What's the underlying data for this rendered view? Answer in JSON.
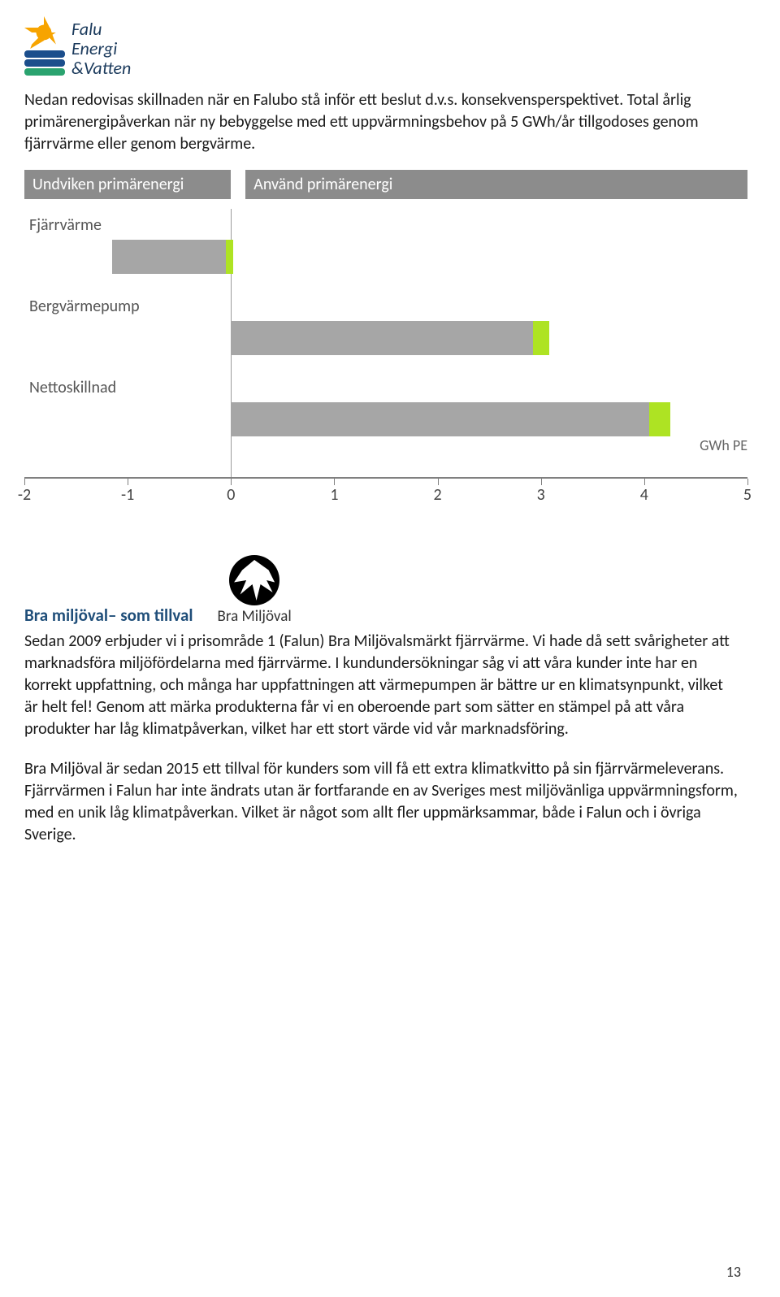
{
  "logo": {
    "line1": "Falu",
    "line2": "Energi",
    "line3": "&Vatten",
    "wave_colors": [
      "#1b4e8c",
      "#1b4e8c",
      "#2aa36f"
    ]
  },
  "intro": "Nedan redovisas skillnaden när en Falubo stå inför ett beslut d.v.s. konsekvensperspektivet. Total årlig primärenergipåverkan när ny bebyggelse med ett uppvärmningsbehov på 5 GWh/år tillgodoses genom fjärrvärme eller genom bergvärme.",
  "chart": {
    "type": "bar-horizontal",
    "header_left": "Undviken primärenergi",
    "header_right": "Använd primärenergi",
    "header_bg": "#8c8c8c",
    "unit_label": "GWh PE",
    "x_min": -2,
    "x_max": 5,
    "ticks": [
      -2,
      -1,
      0,
      1,
      2,
      3,
      4,
      5
    ],
    "rows": [
      {
        "label": "Fjärrvärme",
        "gray_from": -1.15,
        "gray_to": -0.05,
        "green_from": -0.05,
        "green_to": 0.02
      },
      {
        "label": "Bergvärmepump",
        "gray_from": 0.0,
        "gray_to": 2.92,
        "green_from": 2.92,
        "green_to": 3.08
      },
      {
        "label": "Nettoskillnad",
        "gray_from": 0.0,
        "gray_to": 4.05,
        "green_from": 4.05,
        "green_to": 4.25
      }
    ],
    "bar_color_gray": "#a6a6a6",
    "bar_color_green": "#aee323"
  },
  "section": {
    "title": "Bra miljöval– som tillval",
    "bra_logo_text": "Bra Miljöval"
  },
  "para1": "Sedan 2009 erbjuder vi i prisområde 1 (Falun) Bra Miljövalsmärkt fjärrvärme. Vi hade då sett svårigheter att marknadsföra miljöfördelarna med fjärrvärme. I kundundersökningar såg vi att våra kunder inte har en korrekt uppfattning, och många har uppfattningen att värmepumpen är bättre ur en klimatsynpunkt, vilket är helt fel!  Genom att märka produkterna får vi en oberoende part som sätter en stämpel på att våra produkter har låg klimatpåverkan, vilket har ett stort värde vid vår marknadsföring.",
  "para2": "Bra Miljöval är sedan 2015 ett tillval för kunders som vill få ett extra klimatkvitto på sin fjärrvärmeleverans. Fjärrvärmen i Falun har inte ändrats utan är fortfarande en av Sveriges mest miljövänliga uppvärmningsform, med en unik låg klimatpåverkan. Vilket är något som allt fler uppmärksammar, både i Falun och i övriga Sverige.",
  "page_number": "13"
}
